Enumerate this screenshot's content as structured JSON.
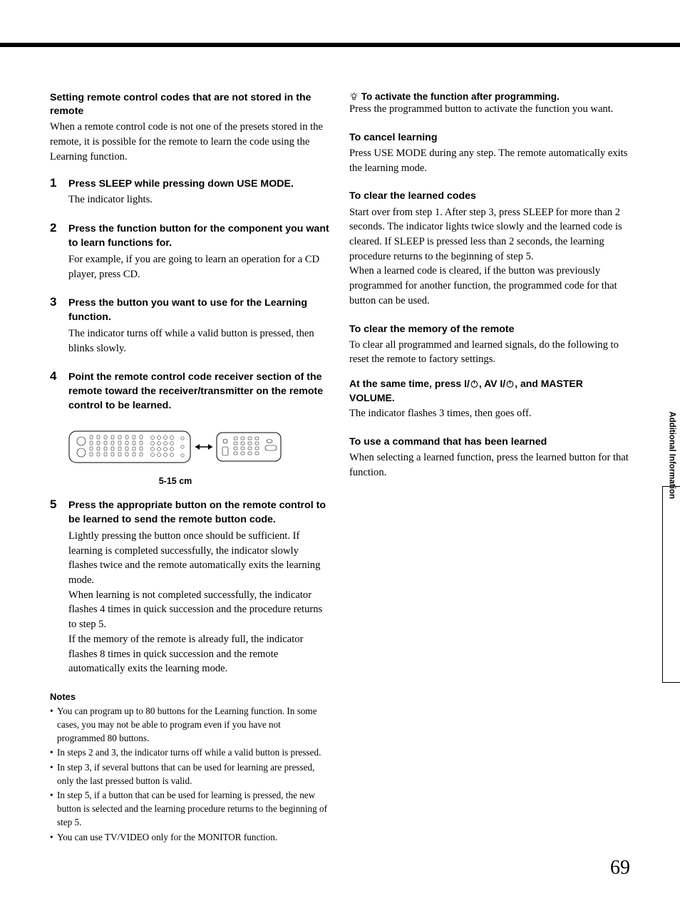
{
  "left": {
    "intro_heading": "Setting remote control codes that are not stored in the remote",
    "intro_body": "When a remote control code is not one of the presets stored in the remote, it is possible for the remote to learn the code using the Learning function.",
    "steps": [
      {
        "n": "1",
        "title": "Press SLEEP while pressing down USE MODE.",
        "body": "The indicator lights."
      },
      {
        "n": "2",
        "title": "Press the function button for the component you want to learn functions for.",
        "body": "For example, if you are going to learn an operation for a CD player, press CD."
      },
      {
        "n": "3",
        "title": "Press the button you want to use for the Learning function.",
        "body": "The indicator turns off while a valid button is pressed, then blinks slowly."
      },
      {
        "n": "4",
        "title": "Point the remote control code receiver section of the remote toward the receiver/transmitter on the remote control to be learned.",
        "body": ""
      },
      {
        "n": "5",
        "title": "Press the appropriate button on the remote control to be learned to send the remote button code.",
        "body": "Lightly pressing the button once should be sufficient. If learning is completed successfully, the indicator slowly flashes twice and the remote automatically exits the learning mode.\nWhen learning is not completed successfully, the indicator flashes 4 times in quick succession and the procedure returns to step 5.\nIf the memory of the remote is already full, the indicator flashes 8 times in quick succession and the remote automatically exits the learning mode."
      }
    ],
    "diagram_caption": "5-15 cm",
    "notes_title": "Notes",
    "notes": [
      "You can program up to 80 buttons for the Learning function. In some cases, you may not be able to program even if you have not programmed 80 buttons.",
      "In steps 2 and 3, the indicator turns off while a valid button is pressed.",
      "In step 3, if several buttons that can be used for learning are pressed, only the last pressed button is valid.",
      "In step 5, if a button that can be used for learning is pressed, the new button is selected and the learning procedure returns to the beginning of step 5.",
      "You can use TV/VIDEO only for the MONITOR function."
    ]
  },
  "right": {
    "tip_title": "To activate the function after programming.",
    "tip_body": "Press the programmed button to activate the function you want.",
    "sec1_h": "To cancel learning",
    "sec1_b": "Press USE MODE during any step. The remote automatically exits the learning mode.",
    "sec2_h": "To clear the learned codes",
    "sec2_b": "Start over from step 1. After step 3, press SLEEP for more than 2 seconds. The indicator lights twice slowly and the learned code is cleared. If SLEEP is pressed less than 2 seconds, the learning procedure returns to the beginning of step 5.\nWhen a learned code is cleared, if the button was previously programmed for another function, the programmed code for that button can be used.",
    "sec3_h": "To clear the memory of the remote",
    "sec3_b": "To clear all programmed and learned signals, do the following to reset the remote to factory settings.",
    "sec3_sub_pre": "At the same time, press ",
    "sec3_sub_a": "I/",
    "sec3_sub_mid": ", AV ",
    "sec3_sub_b": "I/",
    "sec3_sub_post": ", and MASTER VOLUME.",
    "sec3_b2": "The indicator flashes 3 times, then goes off.",
    "sec4_h": "To use a command that has been learned",
    "sec4_b": "When selecting a learned function, press the learned button for that function."
  },
  "sidebar": "Additional Information",
  "page_number": "69",
  "diagram": {
    "remote_a_fill": "#ffffff",
    "remote_b_fill": "#ffffff",
    "stroke": "#000000",
    "arrow_stroke": "#000000"
  }
}
